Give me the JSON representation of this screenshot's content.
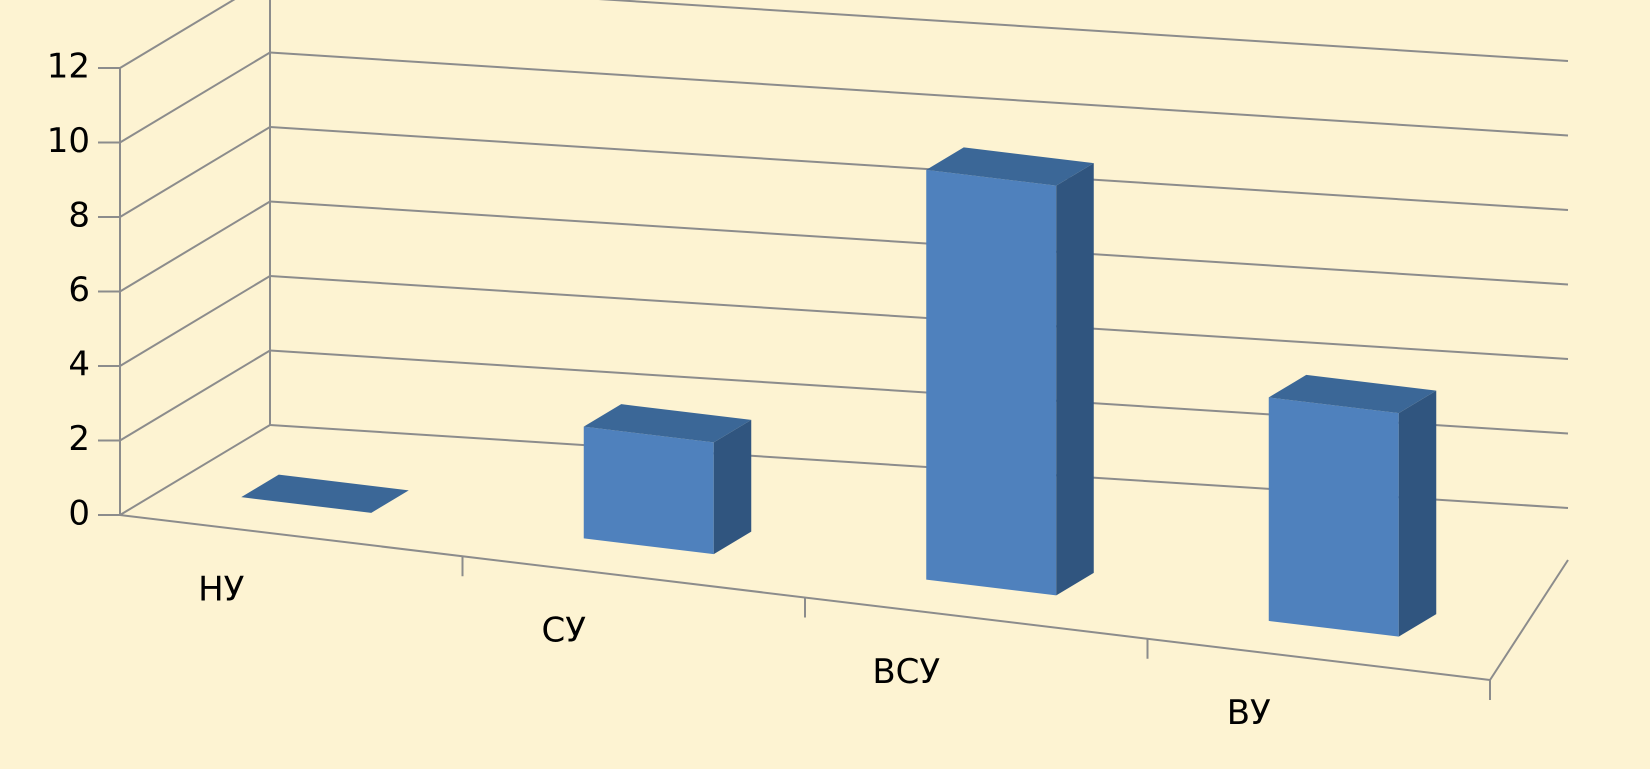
{
  "chart_data": {
    "type": "bar3d",
    "categories": [
      "НУ",
      "СУ",
      "ВСУ",
      "ВУ"
    ],
    "values": [
      0,
      3,
      11,
      6
    ],
    "color": "#4f81bd",
    "ylim": [
      0,
      12
    ],
    "yticks": [
      0,
      2,
      4,
      6,
      8,
      10,
      12
    ],
    "grid": true
  }
}
